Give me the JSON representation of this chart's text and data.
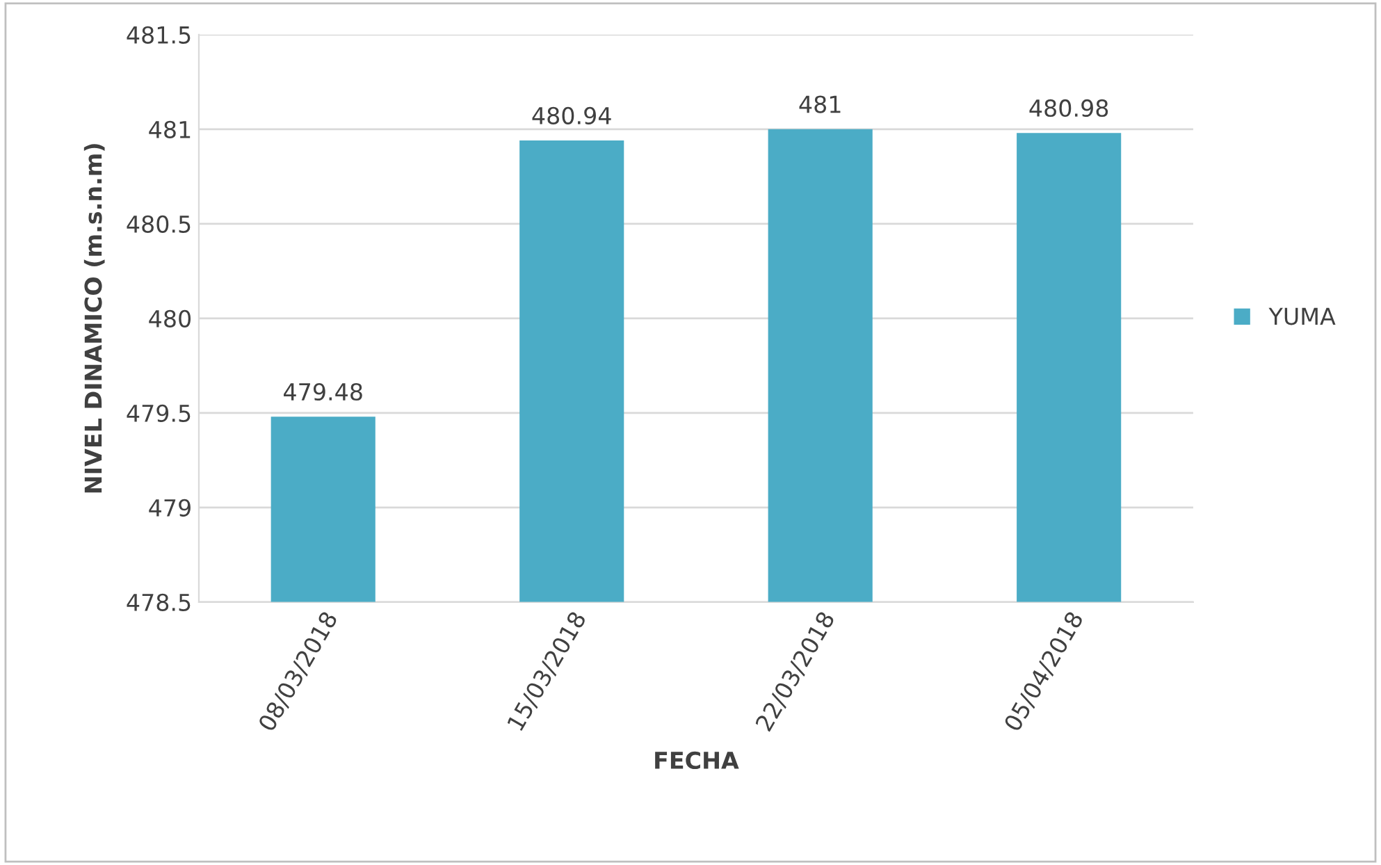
{
  "chart_data": {
    "type": "bar",
    "xlabel": "FECHA",
    "ylabel": "NIVEL DINAMICO (m.s.n.m)",
    "categories": [
      "08/03/2018",
      "15/03/2018",
      "22/03/2018",
      "05/04/2018"
    ],
    "series": [
      {
        "name": "YUMA",
        "color": "#4bacc6",
        "values": [
          479.48,
          480.94,
          481,
          480.98
        ]
      }
    ],
    "ylim": [
      478.5,
      481.5
    ],
    "yticks": [
      478.5,
      479,
      479.5,
      480,
      480.5,
      481,
      481.5
    ],
    "grid": "y",
    "legend": "right",
    "data_labels": true
  }
}
